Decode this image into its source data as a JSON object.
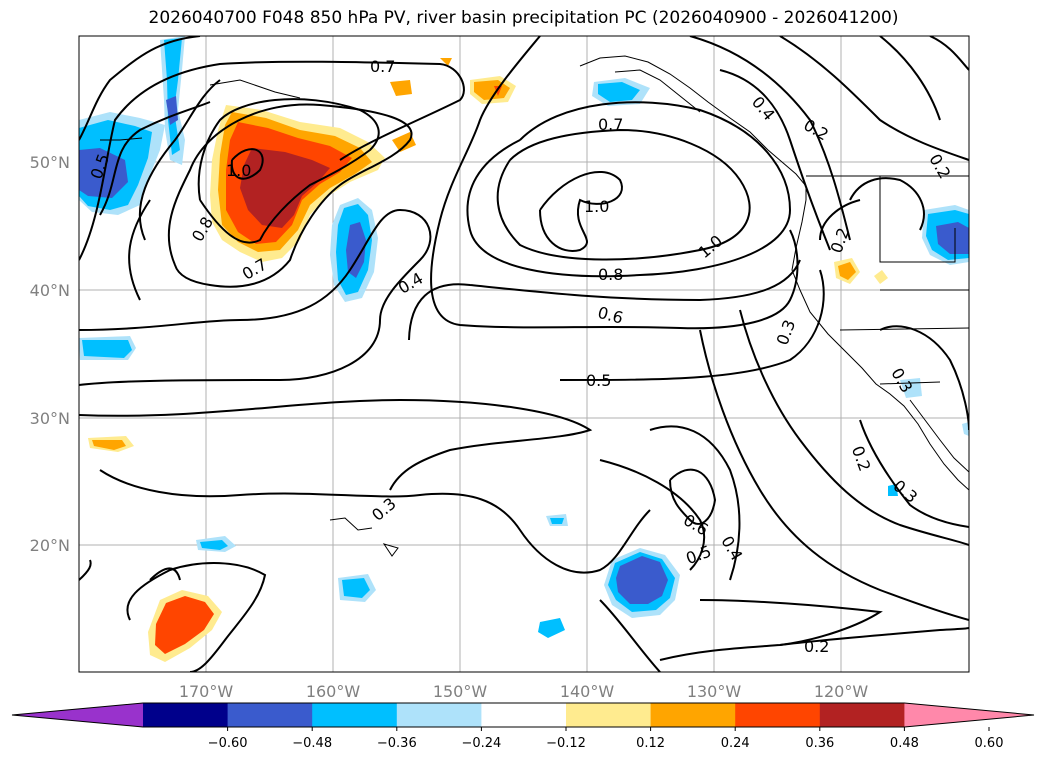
{
  "title": "2026040700 F048 850 hPa PV, river basin precipitation PC (2026040900 - 2026041200)",
  "axes": {
    "lon_ticks": [
      "170°W",
      "160°W",
      "150°W",
      "140°W",
      "130°W",
      "120°W"
    ],
    "lat_ticks": [
      "50°N",
      "40°N",
      "30°N",
      "20°N"
    ]
  },
  "contour_labels": [
    "0.5",
    "0.7",
    "1.0",
    "0.8",
    "0.7",
    "0.4",
    "0.7",
    "1.0",
    "1.0",
    "0.8",
    "0.6",
    "0.5",
    "0.4",
    "0.2",
    "0.2",
    "0.3",
    "0.3",
    "0.6",
    "0.5",
    "0.4",
    "0.2",
    "0.3",
    "0.2",
    "0.3",
    "0.2"
  ],
  "colorbar": {
    "ticks": [
      "−0.60",
      "−0.48",
      "−0.36",
      "−0.24",
      "−0.12",
      "0.12",
      "0.24",
      "0.36",
      "0.48",
      "0.60"
    ],
    "colors": [
      "#9932cc",
      "#00008b",
      "#3a5bcd",
      "#00bfff",
      "#aee2fa",
      "#ffffff",
      "#ffeb8f",
      "#ffa500",
      "#ff4500",
      "#b22222",
      "#ff88aa"
    ]
  }
}
